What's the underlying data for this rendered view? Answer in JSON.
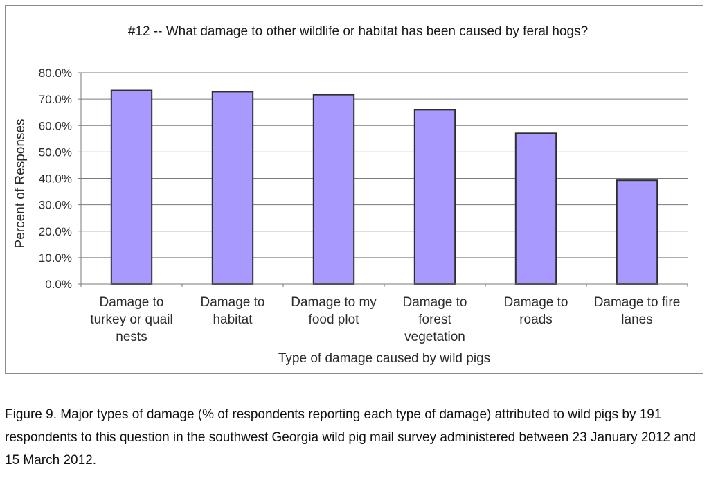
{
  "chart_data": {
    "type": "bar",
    "title": "#12 --  What damage to other wildlife or habitat has been caused by feral hogs?",
    "xlabel": "Type of damage caused by wild pigs",
    "ylabel": "Percent of Responses",
    "categories": [
      [
        "Damage to",
        "turkey or quail",
        "nests"
      ],
      [
        "Damage to",
        "habitat"
      ],
      [
        "Damage to my",
        "food plot"
      ],
      [
        "Damage to",
        "forest",
        "vegetation"
      ],
      [
        "Damage to",
        "roads"
      ],
      [
        "Damage to fire",
        "lanes"
      ]
    ],
    "values": [
      73.3,
      72.8,
      71.7,
      66.0,
      57.1,
      39.3
    ],
    "ylim": [
      0,
      80
    ],
    "yticks": [
      "0.0%",
      "10.0%",
      "20.0%",
      "30.0%",
      "40.0%",
      "50.0%",
      "60.0%",
      "70.0%",
      "80.0%"
    ],
    "grid": true,
    "bar_color": "#a899ff",
    "bar_edge_color": "#2e2e2e"
  },
  "caption": "Figure 9.  Major types of damage (% of respondents reporting each type of damage) attributed to wild pigs by 191 respondents to this question in the southwest Georgia wild pig mail survey administered between 23 January 2012 and 15 March 2012."
}
